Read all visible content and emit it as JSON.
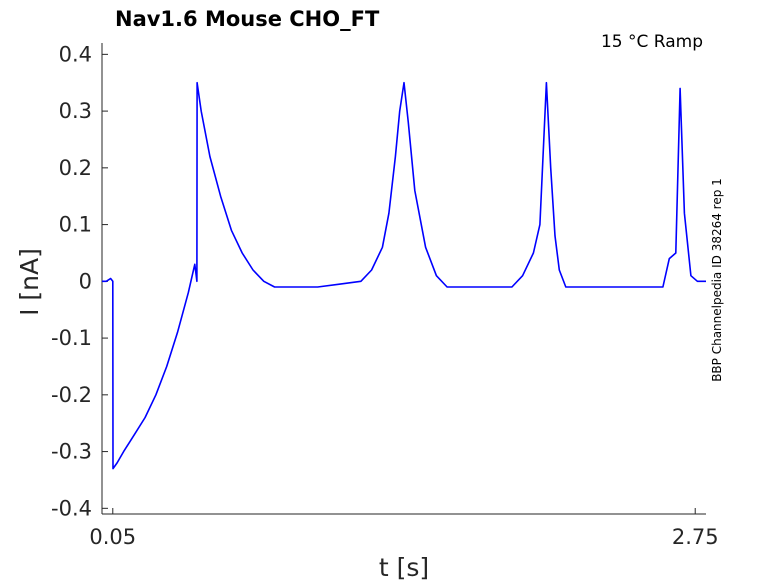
{
  "chart_data": {
    "type": "line",
    "title": "Nav1.6  Mouse  CHO_FT",
    "subtitle": "15 °C  Ramp",
    "xlabel": "t [s]",
    "ylabel": "I [nA]",
    "side_label": "BBP Channelpedia ID 38264 rep 1",
    "xlim": [
      0.0,
      2.8
    ],
    "ylim": [
      -0.41,
      0.42
    ],
    "x_ticks": [
      0.05,
      2.75
    ],
    "x_tick_labels": [
      "0.05",
      "2.75"
    ],
    "y_ticks": [
      0.4,
      0.3,
      0.2,
      0.1,
      0,
      -0.1,
      -0.2,
      -0.3,
      -0.4
    ],
    "y_tick_labels": [
      "0.4",
      "0.3",
      "0.2",
      "0.1",
      "0",
      "-0.1",
      "-0.2",
      "-0.3",
      "-0.4"
    ],
    "grid": false,
    "legend": "none",
    "colors": {
      "trace": "#0000ff",
      "axes": "#262626"
    },
    "series": [
      {
        "x": [
          0.0,
          0.02,
          0.04,
          0.05,
          0.051,
          0.07,
          0.1,
          0.15,
          0.2,
          0.25,
          0.3,
          0.35,
          0.4,
          0.43,
          0.44,
          0.441,
          0.46,
          0.5,
          0.55,
          0.6,
          0.65,
          0.7,
          0.75,
          0.8,
          0.9,
          1.0,
          1.1,
          1.2,
          1.25,
          1.3,
          1.33,
          1.36,
          1.38,
          1.4,
          1.42,
          1.45,
          1.5,
          1.55,
          1.6,
          1.65,
          1.7,
          1.75,
          1.8,
          1.85,
          1.9,
          1.95,
          2.0,
          2.03,
          2.06,
          2.08,
          2.1,
          2.12,
          2.15,
          2.2,
          2.25,
          2.3,
          2.4,
          2.5,
          2.6,
          2.63,
          2.66,
          2.68,
          2.7,
          2.73,
          2.76,
          2.8
        ],
        "y": [
          0.0,
          0.0,
          0.005,
          0.0,
          -0.33,
          -0.32,
          -0.3,
          -0.27,
          -0.24,
          -0.2,
          -0.15,
          -0.09,
          -0.02,
          0.03,
          0.0,
          0.35,
          0.3,
          0.22,
          0.15,
          0.09,
          0.05,
          0.02,
          0.0,
          -0.01,
          -0.01,
          -0.01,
          -0.005,
          0.0,
          0.02,
          0.06,
          0.12,
          0.22,
          0.3,
          0.35,
          0.28,
          0.16,
          0.06,
          0.01,
          -0.01,
          -0.01,
          -0.01,
          -0.01,
          -0.01,
          -0.01,
          -0.01,
          0.01,
          0.05,
          0.1,
          0.35,
          0.2,
          0.08,
          0.02,
          -0.01,
          -0.01,
          -0.01,
          -0.01,
          -0.01,
          -0.01,
          -0.01,
          0.04,
          0.05,
          0.34,
          0.12,
          0.01,
          0.0,
          0.0
        ]
      }
    ]
  }
}
